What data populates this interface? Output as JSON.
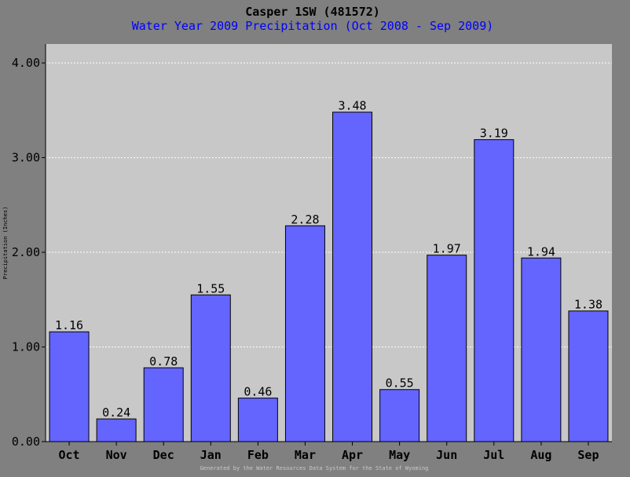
{
  "colors": {
    "background": "#808080",
    "plot_background": "#c8c8c8",
    "bar_fill": "#6464ff",
    "bar_stroke": "#000000",
    "title": "#000000",
    "subtitle": "#0000ff",
    "gridline": "#ffffff",
    "footer": "#c8c8c8"
  },
  "footer": "Generated by the Water Resources Data System for the State of Wyoming",
  "chart_data": {
    "type": "bar",
    "title": "Casper 1SW (481572)",
    "subtitle": "Water Year 2009 Precipitation (Oct 2008 - Sep 2009)",
    "ylabel": "Precipitation (Inches)",
    "xlabel": "",
    "categories": [
      "Oct",
      "Nov",
      "Dec",
      "Jan",
      "Feb",
      "Mar",
      "Apr",
      "May",
      "Jun",
      "Jul",
      "Aug",
      "Sep"
    ],
    "values": [
      1.16,
      0.24,
      0.78,
      1.55,
      0.46,
      2.28,
      3.48,
      0.55,
      1.97,
      3.19,
      1.94,
      1.38
    ],
    "value_labels": [
      "1.16",
      "0.24",
      "0.78",
      "1.55",
      "0.46",
      "2.28",
      "3.48",
      "0.55",
      "1.97",
      "3.19",
      "1.94",
      "1.38"
    ],
    "ylim": [
      0,
      4.2
    ],
    "yticks": [
      0,
      1,
      2,
      3,
      4
    ],
    "ytick_labels": [
      "0.00",
      "1.00",
      "2.00",
      "3.00",
      "4.00"
    ],
    "grid": true
  }
}
